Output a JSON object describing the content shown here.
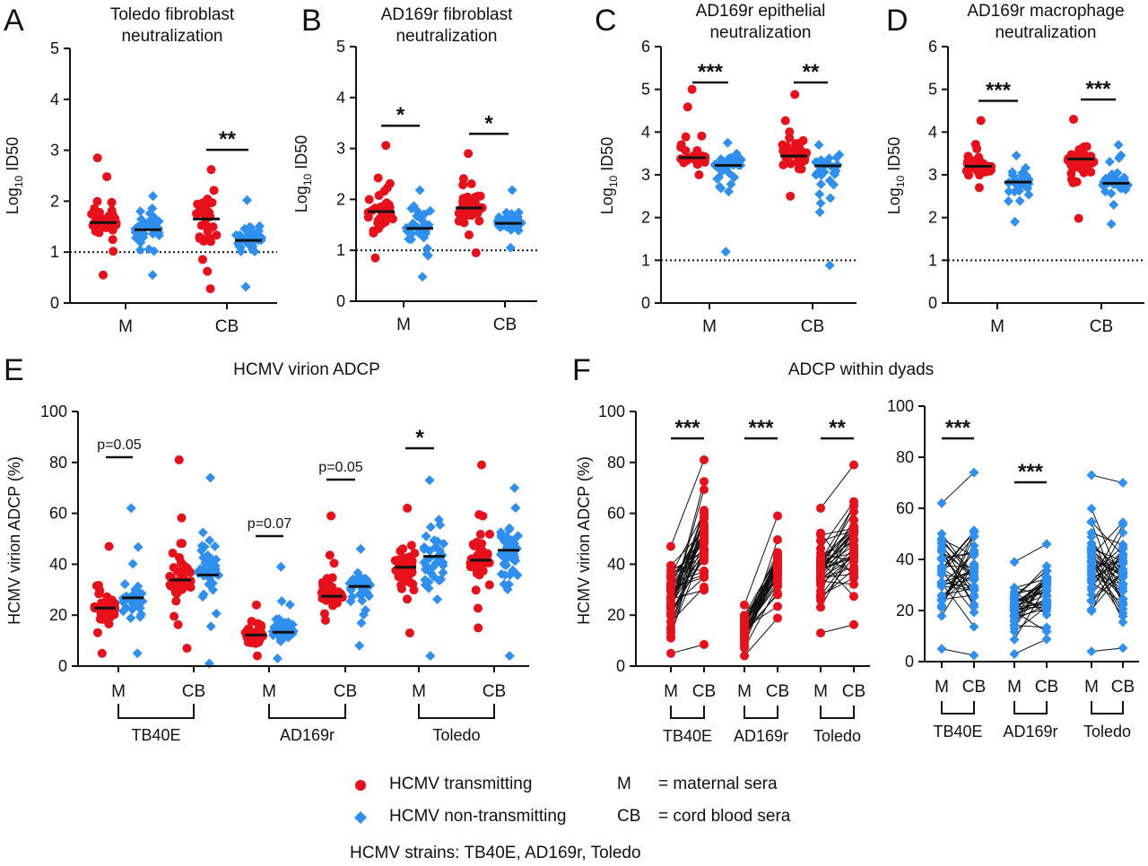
{
  "colors": {
    "transmitting": "#e8101a",
    "non_transmitting": "#2e8fef",
    "text": "#111111"
  },
  "panels": {
    "A": {
      "letter": "A",
      "title": [
        "Toledo fibroblast",
        "neutralization"
      ]
    },
    "B": {
      "letter": "B",
      "title": [
        "AD169r fibroblast",
        "neutralization"
      ]
    },
    "C": {
      "letter": "C",
      "title": [
        "AD169r epithelial",
        "neutralization"
      ]
    },
    "D": {
      "letter": "D",
      "title": [
        "AD169r macrophage",
        "neutralization"
      ]
    },
    "E": {
      "letter": "E",
      "title": [
        "HCMV virion ADCP"
      ]
    },
    "F": {
      "letter": "F",
      "title": [
        "ADCP within dyads"
      ]
    }
  },
  "legend": {
    "transmitting": "HCMV transmitting",
    "non_transmitting": "HCMV non-transmitting",
    "m_key": "M",
    "m_def": "=  maternal sera",
    "cb_key": "CB",
    "cb_def": "=  cord blood sera",
    "strains": "HCMV strains: TB40E, AD169r, Toledo"
  },
  "chart_data": [
    {
      "id": "A",
      "type": "scatter",
      "title": "Toledo fibroblast neutralization",
      "ylabel": "Log10 ID50",
      "ylim": [
        0,
        5
      ],
      "yticks": [
        0,
        1,
        2,
        3,
        4,
        5
      ],
      "xlabels": [
        "M",
        "CB"
      ],
      "dotted_line": 1,
      "series": [
        {
          "name": "HCMV transmitting",
          "group": "M",
          "median": 1.58,
          "min": 0.55,
          "max": 2.85
        },
        {
          "name": "HCMV non-transmitting",
          "group": "M",
          "median": 1.44,
          "min": 0.55,
          "max": 2.1
        },
        {
          "name": "HCMV transmitting",
          "group": "CB",
          "median": 1.65,
          "min": 0.28,
          "max": 2.62
        },
        {
          "name": "HCMV non-transmitting",
          "group": "CB",
          "median": 1.23,
          "min": 0.32,
          "max": 2.02
        }
      ],
      "annotations": [
        {
          "group": "CB",
          "text": "**"
        }
      ]
    },
    {
      "id": "B",
      "type": "scatter",
      "title": "AD169r fibroblast neutralization",
      "ylabel": "Log10 ID50",
      "ylim": [
        0,
        5
      ],
      "yticks": [
        0,
        1,
        2,
        3,
        4,
        5
      ],
      "xlabels": [
        "M",
        "CB"
      ],
      "dotted_line": 1,
      "series": [
        {
          "name": "HCMV transmitting",
          "group": "M",
          "median": 1.76,
          "min": 0.85,
          "max": 3.06
        },
        {
          "name": "HCMV non-transmitting",
          "group": "M",
          "median": 1.43,
          "min": 0.48,
          "max": 2.18
        },
        {
          "name": "HCMV transmitting",
          "group": "CB",
          "median": 1.83,
          "min": 0.95,
          "max": 2.9
        },
        {
          "name": "HCMV non-transmitting",
          "group": "CB",
          "median": 1.53,
          "min": 1.05,
          "max": 2.18
        }
      ],
      "annotations": [
        {
          "group": "M",
          "text": "*"
        },
        {
          "group": "CB",
          "text": "*"
        }
      ]
    },
    {
      "id": "C",
      "type": "scatter",
      "title": "AD169r epithelial neutralization",
      "ylabel": "Log10 ID50",
      "ylim": [
        0,
        6
      ],
      "yticks": [
        0,
        1,
        2,
        3,
        4,
        5,
        6
      ],
      "xlabels": [
        "M",
        "CB"
      ],
      "dotted_line": 1,
      "series": [
        {
          "name": "HCMV transmitting",
          "group": "M",
          "median": 3.4,
          "min": 3.0,
          "max": 5.0
        },
        {
          "name": "HCMV non-transmitting",
          "group": "M",
          "median": 3.22,
          "min": 1.2,
          "max": 3.75
        },
        {
          "name": "HCMV transmitting",
          "group": "CB",
          "median": 3.44,
          "min": 2.5,
          "max": 4.88
        },
        {
          "name": "HCMV non-transmitting",
          "group": "CB",
          "median": 3.21,
          "min": 0.88,
          "max": 3.7
        }
      ],
      "annotations": [
        {
          "group": "M",
          "text": "***"
        },
        {
          "group": "CB",
          "text": "**"
        }
      ]
    },
    {
      "id": "D",
      "type": "scatter",
      "title": "AD169r macrophage neutralization",
      "ylabel": "Log10 ID50",
      "ylim": [
        0,
        6
      ],
      "yticks": [
        0,
        1,
        2,
        3,
        4,
        5,
        6
      ],
      "xlabels": [
        "M",
        "CB"
      ],
      "dotted_line": 1,
      "series": [
        {
          "name": "HCMV transmitting",
          "group": "M",
          "median": 3.2,
          "min": 2.7,
          "max": 4.27
        },
        {
          "name": "HCMV non-transmitting",
          "group": "M",
          "median": 2.83,
          "min": 1.9,
          "max": 3.45
        },
        {
          "name": "HCMV transmitting",
          "group": "CB",
          "median": 3.37,
          "min": 1.98,
          "max": 4.3
        },
        {
          "name": "HCMV non-transmitting",
          "group": "CB",
          "median": 2.8,
          "min": 1.85,
          "max": 3.7
        }
      ],
      "annotations": [
        {
          "group": "M",
          "text": "***"
        },
        {
          "group": "CB",
          "text": "***"
        }
      ]
    },
    {
      "id": "E",
      "type": "scatter",
      "title": "HCMV virion ADCP",
      "ylabel": "HCMV virion ADCP (%)",
      "ylim": [
        0,
        100
      ],
      "yticks": [
        0,
        20,
        40,
        60,
        80,
        100
      ],
      "xlabels": [
        "M",
        "CB",
        "M",
        "CB",
        "M",
        "CB"
      ],
      "strains": [
        "TB40E",
        "AD169r",
        "Toledo"
      ],
      "series": [
        {
          "name": "HCMV transmitting",
          "strain": "TB40E",
          "group": "M",
          "median": 22.8,
          "min": 5,
          "max": 47
        },
        {
          "name": "HCMV non-transmitting",
          "strain": "TB40E",
          "group": "M",
          "median": 26.8,
          "min": 5,
          "max": 62
        },
        {
          "name": "HCMV transmitting",
          "strain": "TB40E",
          "group": "CB",
          "median": 33.8,
          "min": 7,
          "max": 81
        },
        {
          "name": "HCMV non-transmitting",
          "strain": "TB40E",
          "group": "CB",
          "median": 35.8,
          "min": 1,
          "max": 74
        },
        {
          "name": "HCMV transmitting",
          "strain": "AD169r",
          "group": "M",
          "median": 12.2,
          "min": 4,
          "max": 24
        },
        {
          "name": "HCMV non-transmitting",
          "strain": "AD169r",
          "group": "M",
          "median": 13.3,
          "min": 3,
          "max": 39
        },
        {
          "name": "HCMV transmitting",
          "strain": "AD169r",
          "group": "CB",
          "median": 27.4,
          "min": 18,
          "max": 59
        },
        {
          "name": "HCMV non-transmitting",
          "strain": "AD169r",
          "group": "CB",
          "median": 31.3,
          "min": 8,
          "max": 46
        },
        {
          "name": "HCMV transmitting",
          "strain": "Toledo",
          "group": "M",
          "median": 38.8,
          "min": 13,
          "max": 62
        },
        {
          "name": "HCMV non-transmitting",
          "strain": "Toledo",
          "group": "M",
          "median": 43.1,
          "min": 4,
          "max": 73
        },
        {
          "name": "HCMV transmitting",
          "strain": "Toledo",
          "group": "CB",
          "median": 41.6,
          "min": 15,
          "max": 79
        },
        {
          "name": "HCMV non-transmitting",
          "strain": "Toledo",
          "group": "CB",
          "median": 45.5,
          "min": 4,
          "max": 70
        }
      ],
      "annotations": [
        {
          "strain": "TB40E",
          "text": "p=0.05"
        },
        {
          "strain": "AD169r",
          "text": "p=0.07"
        },
        {
          "strain": "AD169r-CB",
          "text": "p=0.05"
        },
        {
          "strain": "Toledo",
          "text": "*"
        }
      ]
    },
    {
      "id": "F1",
      "type": "line",
      "title": "ADCP within dyads",
      "ylabel": "HCMV virion ADCP (%)",
      "ylim": [
        0,
        100
      ],
      "yticks": [
        0,
        20,
        40,
        60,
        80,
        100
      ],
      "xlabels": [
        "M",
        "CB",
        "M",
        "CB",
        "M",
        "CB"
      ],
      "strains": [
        "TB40E",
        "AD169r",
        "Toledo"
      ],
      "series_name": "HCMV transmitting",
      "ranges": [
        {
          "strain": "TB40E",
          "M": [
            5,
            47
          ],
          "CB": [
            7,
            81
          ]
        },
        {
          "strain": "AD169r",
          "M": [
            4,
            24
          ],
          "CB": [
            18,
            59
          ]
        },
        {
          "strain": "Toledo",
          "M": [
            13,
            62
          ],
          "CB": [
            15,
            79
          ]
        }
      ],
      "annotations": [
        {
          "strain": "TB40E",
          "text": "***"
        },
        {
          "strain": "AD169r",
          "text": "***"
        },
        {
          "strain": "Toledo",
          "text": "**"
        }
      ]
    },
    {
      "id": "F2",
      "type": "line",
      "ylim": [
        0,
        100
      ],
      "yticks": [
        0,
        20,
        40,
        60,
        80,
        100
      ],
      "xlabels": [
        "M",
        "CB",
        "M",
        "CB",
        "M",
        "CB"
      ],
      "strains": [
        "TB40E",
        "AD169r",
        "Toledo"
      ],
      "series_name": "HCMV non-transmitting",
      "ranges": [
        {
          "strain": "TB40E",
          "M": [
            5,
            62
          ],
          "CB": [
            1,
            74
          ]
        },
        {
          "strain": "AD169r",
          "M": [
            3,
            39
          ],
          "CB": [
            8,
            46
          ]
        },
        {
          "strain": "Toledo",
          "M": [
            4,
            73
          ],
          "CB": [
            4,
            70
          ]
        }
      ],
      "annotations": [
        {
          "strain": "TB40E",
          "text": "***"
        },
        {
          "strain": "AD169r",
          "text": "***"
        }
      ]
    }
  ]
}
